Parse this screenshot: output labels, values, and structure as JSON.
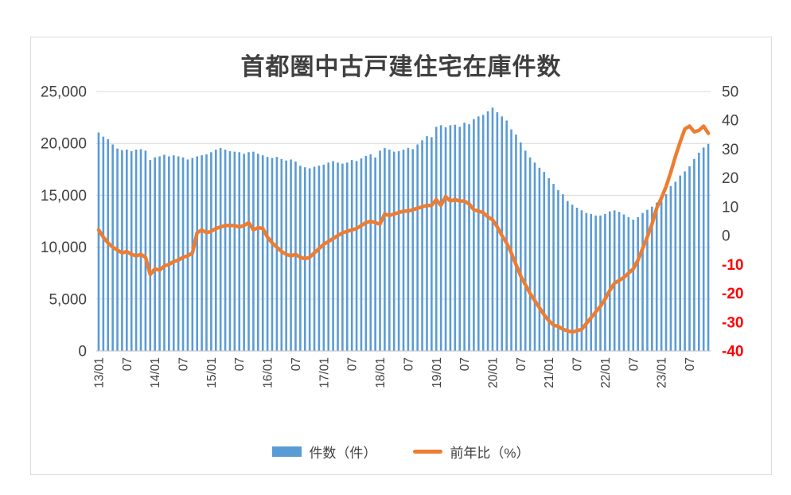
{
  "title": "首都圏中古戸建住宅在庫件数",
  "legend": {
    "items": [
      {
        "label": "件数（件）",
        "type": "bar",
        "color": "#5B9BD5"
      },
      {
        "label": "前年比（%）",
        "type": "line",
        "color": "#ED7D31"
      }
    ]
  },
  "colors": {
    "bar": "#5B9BD5",
    "line": "#ED7D31",
    "gridline": "#D9D9D9",
    "axis_line": "#BFBFBF",
    "text": "#404040",
    "negative_tick": "#FF0000",
    "frame_border": "#D9D9D9"
  },
  "chart_data": {
    "type": "bar",
    "subtype": "combo-bar-line-dual-axis",
    "title": "首都圏中古戸建住宅在庫件数",
    "x_start": "13/01",
    "x_freq": "monthly",
    "x_tick_labels": [
      "13/01",
      "07",
      "14/01",
      "07",
      "15/01",
      "07",
      "16/01",
      "07",
      "17/01",
      "07",
      "18/01",
      "07",
      "19/01",
      "07",
      "20/01",
      "07",
      "21/01",
      "07",
      "22/01",
      "07",
      "23/01",
      "07"
    ],
    "x_tick_month_indexes": [
      0,
      6,
      12,
      18,
      24,
      30,
      36,
      42,
      48,
      54,
      60,
      66,
      72,
      78,
      84,
      90,
      96,
      102,
      108,
      114,
      120,
      126
    ],
    "left_axis": {
      "min": 0,
      "max": 25000,
      "tick_labels": [
        "25,000",
        "20,000",
        "15,000",
        "10,000",
        "5,000",
        "0"
      ],
      "tick_values": [
        25000,
        20000,
        15000,
        10000,
        5000,
        0
      ]
    },
    "right_axis": {
      "min": -40,
      "max": 50,
      "tick_labels": [
        "50",
        "40",
        "30",
        "20",
        "10",
        "0",
        "-10",
        "-20",
        "-30",
        "-40"
      ],
      "tick_values": [
        50,
        40,
        30,
        20,
        10,
        0,
        -10,
        -20,
        -30,
        -40
      ],
      "negative_color": "#FF0000"
    },
    "grid": "horizontal-only",
    "legend_position": "bottom",
    "series": [
      {
        "name": "件数（件）",
        "type": "bar",
        "axis": "left",
        "color": "#5B9BD5",
        "values": [
          21050,
          20650,
          20400,
          19900,
          19500,
          19350,
          19400,
          19250,
          19400,
          19450,
          19300,
          18400,
          18650,
          18750,
          18900,
          18750,
          18850,
          18750,
          18650,
          18450,
          18600,
          18750,
          18850,
          18950,
          19150,
          19400,
          19550,
          19400,
          19250,
          19200,
          19150,
          19000,
          19150,
          19200,
          19000,
          18850,
          18700,
          18600,
          18700,
          18500,
          18350,
          18450,
          18250,
          17850,
          17700,
          17600,
          17750,
          17850,
          17950,
          18150,
          18300,
          18150,
          18050,
          18150,
          18400,
          18300,
          18550,
          18800,
          18950,
          18650,
          19300,
          19550,
          19400,
          19200,
          19250,
          19400,
          19550,
          19450,
          19900,
          20300,
          20700,
          20600,
          21600,
          21750,
          21550,
          21750,
          21800,
          21600,
          22000,
          21850,
          22350,
          22600,
          22750,
          23100,
          23450,
          23000,
          22600,
          22200,
          21350,
          20850,
          20100,
          19300,
          18650,
          18150,
          17650,
          17250,
          16650,
          16100,
          15500,
          15100,
          14450,
          14100,
          13800,
          13550,
          13300,
          13200,
          13050,
          13050,
          13200,
          13450,
          13550,
          13400,
          13150,
          12900,
          12650,
          12900,
          13300,
          13600,
          13900,
          14300,
          14700,
          15100,
          15900,
          16300,
          16900,
          17300,
          17800,
          18500,
          19100,
          19600,
          19950
        ]
      },
      {
        "name": "前年比（%）",
        "type": "line",
        "axis": "right",
        "color": "#ED7D31",
        "values": [
          2.0,
          -0.5,
          -2.5,
          -4.0,
          -5.0,
          -6.0,
          -5.5,
          -6.5,
          -7.0,
          -6.5,
          -7.5,
          -13.5,
          -11.5,
          -12.0,
          -10.5,
          -10.0,
          -9.0,
          -8.5,
          -7.5,
          -7.0,
          -6.0,
          1.0,
          2.0,
          1.0,
          1.5,
          2.5,
          3.0,
          3.5,
          3.5,
          3.5,
          3.0,
          3.5,
          4.5,
          2.0,
          2.8,
          2.5,
          -0.5,
          -2.5,
          -4.0,
          -5.5,
          -6.5,
          -7.0,
          -6.5,
          -7.5,
          -8.0,
          -7.5,
          -6.0,
          -4.5,
          -3.0,
          -2.0,
          -1.0,
          0.0,
          1.0,
          1.5,
          2.0,
          2.5,
          3.5,
          4.5,
          5.0,
          4.5,
          4.0,
          7.5,
          7.0,
          7.5,
          8.0,
          8.5,
          8.5,
          9.0,
          9.5,
          10.0,
          10.5,
          10.5,
          12.5,
          10.5,
          13.5,
          12.0,
          12.5,
          12.0,
          12.0,
          11.0,
          9.0,
          8.5,
          8.0,
          6.5,
          5.5,
          3.0,
          0.0,
          -2.5,
          -6.0,
          -10.0,
          -14.0,
          -17.0,
          -20.0,
          -22.5,
          -25.0,
          -27.5,
          -29.5,
          -31.0,
          -31.5,
          -32.5,
          -33.0,
          -33.5,
          -33.0,
          -32.5,
          -30.5,
          -28.5,
          -26.5,
          -24.5,
          -22.0,
          -19.0,
          -16.5,
          -15.5,
          -14.5,
          -13.0,
          -11.5,
          -8.5,
          -4.5,
          -0.5,
          4.0,
          9.5,
          13.0,
          17.0,
          22.0,
          27.5,
          32.5,
          37.0,
          38.0,
          36.0,
          36.5,
          38.0,
          35.5
        ]
      }
    ]
  }
}
